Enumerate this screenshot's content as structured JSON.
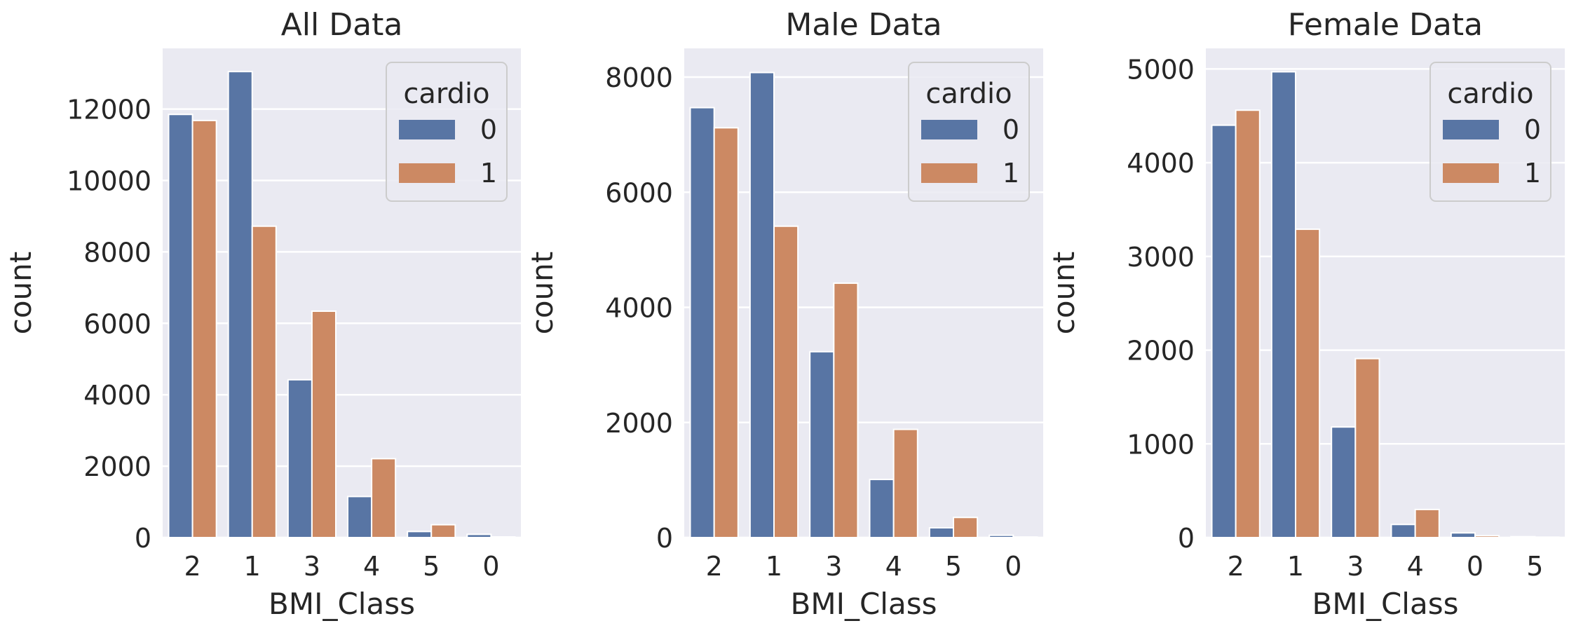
{
  "chart_data": [
    {
      "type": "bar",
      "title": "All Data",
      "xlabel": "BMI_Class",
      "ylabel": "count",
      "categories": [
        "2",
        "1",
        "3",
        "4",
        "5",
        "0"
      ],
      "yticks": [
        0,
        2000,
        4000,
        6000,
        8000,
        10000,
        12000
      ],
      "ylim": [
        0,
        13700
      ],
      "legend": {
        "title": "cardio",
        "placement": "top-right"
      },
      "series": [
        {
          "name": "0",
          "color": "#5875a4",
          "values": [
            11850,
            13050,
            4420,
            1150,
            170,
            90
          ]
        },
        {
          "name": "1",
          "color": "#cc8963",
          "values": [
            11680,
            8720,
            6340,
            2210,
            360,
            20
          ]
        }
      ],
      "grid": true
    },
    {
      "type": "bar",
      "title": "Male Data",
      "xlabel": "BMI_Class",
      "ylabel": "count",
      "categories": [
        "2",
        "1",
        "3",
        "4",
        "5",
        "0"
      ],
      "yticks": [
        0,
        2000,
        4000,
        6000,
        8000
      ],
      "ylim": [
        0,
        8500
      ],
      "legend": {
        "title": "cardio",
        "placement": "top-right"
      },
      "series": [
        {
          "name": "0",
          "color": "#5875a4",
          "values": [
            7470,
            8080,
            3230,
            1010,
            170,
            40
          ]
        },
        {
          "name": "1",
          "color": "#cc8963",
          "values": [
            7120,
            5410,
            4420,
            1880,
            350,
            10
          ]
        }
      ],
      "grid": true
    },
    {
      "type": "bar",
      "title": "Female Data",
      "xlabel": "BMI_Class",
      "ylabel": "count",
      "categories": [
        "2",
        "1",
        "3",
        "4",
        "0",
        "5"
      ],
      "yticks": [
        0,
        1000,
        2000,
        3000,
        4000,
        5000
      ],
      "ylim": [
        0,
        5220
      ],
      "legend": {
        "title": "cardio",
        "placement": "top-right"
      },
      "series": [
        {
          "name": "0",
          "color": "#5875a4",
          "values": [
            4400,
            4970,
            1180,
            140,
            50,
            10
          ]
        },
        {
          "name": "1",
          "color": "#cc8963",
          "values": [
            4560,
            3290,
            1910,
            300,
            20,
            5
          ]
        }
      ],
      "grid": true
    }
  ]
}
